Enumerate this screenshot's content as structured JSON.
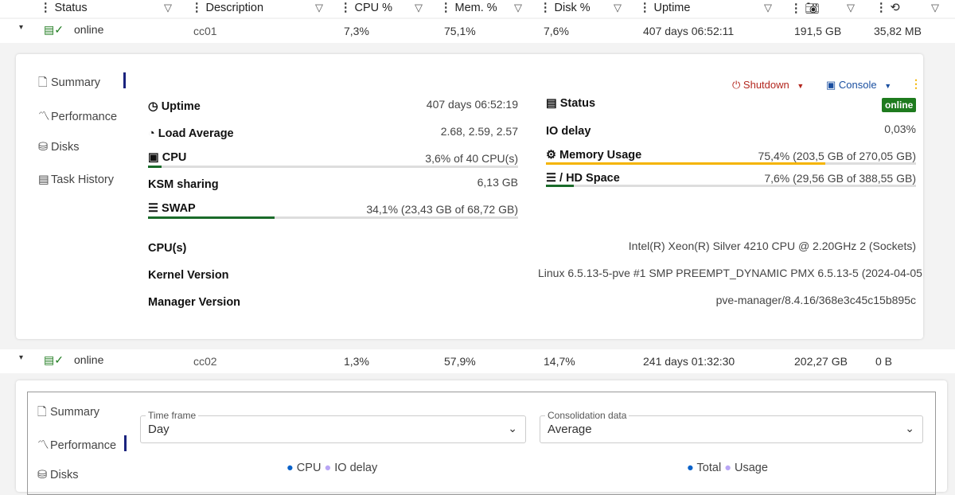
{
  "columns": [
    "Status",
    "Description",
    "CPU %",
    "Mem. %",
    "Disk %",
    "Uptime"
  ],
  "column_icons": [
    "camera-icon",
    "sync-icon"
  ],
  "nodes": [
    {
      "status": "online",
      "description": "cc01",
      "cpu": "7,3%",
      "mem": "75,1%",
      "disk": "7,6%",
      "uptime": "407 days 06:52:11",
      "snap": "191,5 GB",
      "sync": "35,82 MB"
    },
    {
      "status": "online",
      "description": "cc02",
      "cpu": "1,3%",
      "mem": "57,9%",
      "disk": "14,7%",
      "uptime": "241 days 01:32:30",
      "snap": "202,27 GB",
      "sync": "0 B"
    }
  ],
  "nav": [
    "Summary",
    "Performance",
    "Disks",
    "Task History"
  ],
  "actions": {
    "shutdown": "Shutdown",
    "console": "Console"
  },
  "summary": {
    "uptime_label": "Uptime",
    "uptime": "407 days 06:52:19",
    "load_label": "Load Average",
    "load": "2.68, 2.59, 2.57",
    "cpu_label": "CPU",
    "cpu": "3,6% of 40 CPU(s)",
    "cpu_pct": 3.6,
    "ksm_label": "KSM sharing",
    "ksm": "6,13 GB",
    "swap_label": "SWAP",
    "swap": "34,1% (23,43 GB of 68,72 GB)",
    "swap_pct": 34.1,
    "status_label": "Status",
    "status": "online",
    "io_label": "IO delay",
    "io": "0,03%",
    "mem_label": "Memory Usage",
    "mem": "75,4% (203,5 GB of 270,05 GB)",
    "mem_pct": 75.4,
    "hd_label": "/ HD Space",
    "hd": "7,6% (29,56 GB of 388,55 GB)",
    "hd_pct": 7.6,
    "cpus_label": "CPU(s)",
    "cpus": "Intel(R) Xeon(R) Silver 4210 CPU @ 2.20GHz 2 (Sockets)",
    "kernel_label": "Kernel Version",
    "kernel": "Linux 6.5.13-5-pve #1 SMP PREEMPT_DYNAMIC PMX 6.5.13-5 (2024-04-05",
    "manager_label": "Manager Version",
    "manager": "pve-manager/8.4.16/368e3c45c15b895c"
  },
  "performance": {
    "timeframe_label": "Time frame",
    "timeframe": "Day",
    "consolidation_label": "Consolidation data",
    "consolidation": "Average",
    "legend1": [
      "CPU",
      "IO delay"
    ],
    "legend2": [
      "Total",
      "Usage"
    ]
  },
  "colors": {
    "online": "#1e7b1e",
    "memory": "#f5b400",
    "cpu": "#1a6b2a",
    "cpu_legend": "#0a62c9",
    "io_legend": "#b9a6f5",
    "accent": "#1a237e",
    "shutdown": "#b3261e",
    "console": "#1a4fa0"
  }
}
